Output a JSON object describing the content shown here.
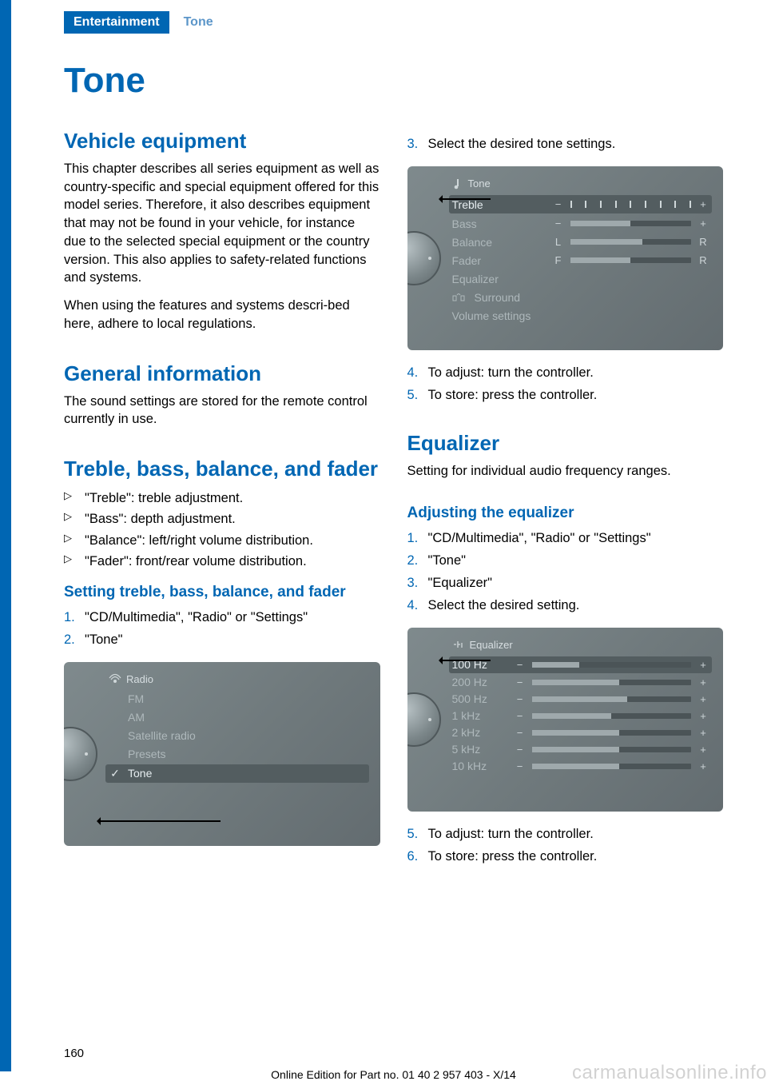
{
  "header": {
    "section": "Entertainment",
    "crumb": "Tone"
  },
  "page_title": "Tone",
  "left": {
    "vehicle_equipment": {
      "heading": "Vehicle equipment",
      "p1": "This chapter describes all series equipment as well as country-specific and special equipment offered for this model series. Therefore, it also describes equipment that may not be found in your vehicle, for instance due to the selected special equipment or the country version. This also applies to safety-related functions and systems.",
      "p2": "When using the features and systems descri‐bed here, adhere to local regulations."
    },
    "general": {
      "heading": "General information",
      "p1": "The sound settings are stored for the remote control currently in use."
    },
    "tbbf": {
      "heading": "Treble, bass, balance, and fader",
      "items": [
        "\"Treble\": treble adjustment.",
        "\"Bass\": depth adjustment.",
        "\"Balance\": left/right volume distribution.",
        "\"Fader\": front/rear volume distribution."
      ],
      "sub": "Setting treble, bass, balance, and fader",
      "steps": [
        "\"CD/Multimedia\", \"Radio\" or \"Settings\"",
        "\"Tone\""
      ]
    },
    "fig_radio": {
      "title": "Radio",
      "rows": [
        "FM",
        "AM",
        "Satellite radio",
        "Presets",
        "Tone"
      ],
      "selected": "Tone"
    }
  },
  "right": {
    "steps_continue": [
      "Select the desired tone settings."
    ],
    "fig_tone": {
      "title": "Tone",
      "rows": [
        {
          "label": "Treble",
          "left": "−",
          "right": "+",
          "type": "ticks",
          "selected": true
        },
        {
          "label": "Bass",
          "left": "−",
          "right": "+",
          "type": "bar"
        },
        {
          "label": "Balance",
          "left": "L",
          "right": "R",
          "type": "bar"
        },
        {
          "label": "Fader",
          "left": "F",
          "right": "R",
          "type": "bar"
        },
        {
          "label": "Equalizer",
          "type": "link"
        },
        {
          "label": "Surround",
          "type": "link",
          "icon": true
        },
        {
          "label": "Volume settings",
          "type": "link"
        }
      ]
    },
    "steps_after_tone": [
      "To adjust: turn the controller.",
      "To store: press the controller."
    ],
    "equalizer": {
      "heading": "Equalizer",
      "p1": "Setting for individual audio frequency ranges.",
      "sub": "Adjusting the equalizer",
      "steps": [
        "\"CD/Multimedia\", \"Radio\" or \"Settings\"",
        "\"Tone\"",
        "\"Equalizer\"",
        "Select the desired setting."
      ]
    },
    "fig_eq": {
      "title": "Equalizer",
      "rows": [
        {
          "label": "100 Hz",
          "fill": 0.3,
          "selected": true
        },
        {
          "label": "200 Hz",
          "fill": 0.55
        },
        {
          "label": "500 Hz",
          "fill": 0.6
        },
        {
          "label": "1 kHz",
          "fill": 0.5
        },
        {
          "label": "2 kHz",
          "fill": 0.55
        },
        {
          "label": "5 kHz",
          "fill": 0.55
        },
        {
          "label": "10 kHz",
          "fill": 0.55
        }
      ]
    },
    "steps_after_eq": [
      "To adjust: turn the controller.",
      "To store: press the controller."
    ]
  },
  "footer": {
    "page": "160",
    "line": "Online Edition for Part no. 01 40 2 957 403 - X/14",
    "watermark": "carmanualsonline.info"
  },
  "colors": {
    "brand": "#0066b3",
    "crumb": "#5c96c9"
  }
}
